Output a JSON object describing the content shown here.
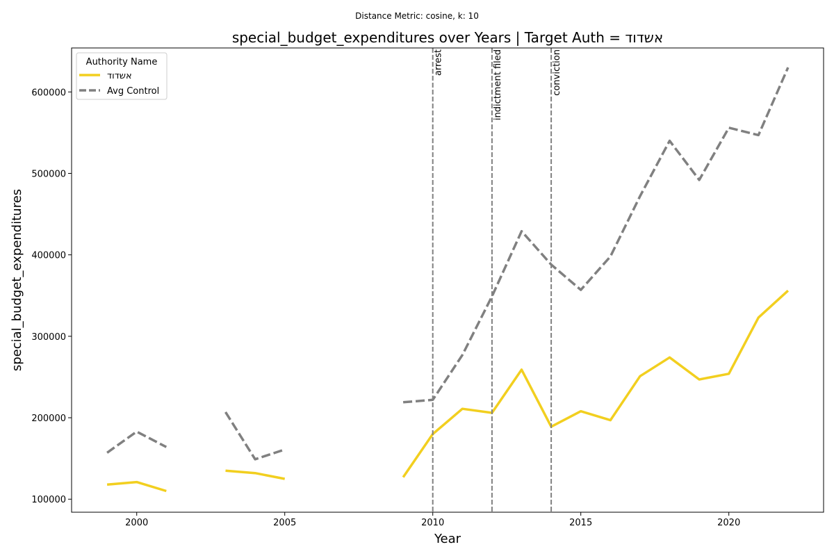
{
  "figure": {
    "suptitle": "Distance Metric: cosine, k: 10"
  },
  "chart_data": {
    "type": "line",
    "title": "special_budget_expenditures over Years | Target Auth = אשדוד",
    "xlabel": "Year",
    "ylabel": "special_budget_expenditures",
    "xlim": [
      1997.8,
      2023.2
    ],
    "ylim": [
      84000,
      654000
    ],
    "xticks": [
      2000,
      2005,
      2010,
      2015,
      2020
    ],
    "yticks": [
      100000,
      200000,
      300000,
      400000,
      500000,
      600000
    ],
    "grid": false,
    "legend": {
      "title": "Authority Name",
      "placement": "upper-left"
    },
    "series": [
      {
        "name": "אשדוד",
        "color": "#F2CF1F",
        "style": "solid",
        "x": [
          1999,
          2000,
          2001,
          2002,
          2003,
          2004,
          2005,
          2006,
          2007,
          2008,
          2009,
          2010,
          2011,
          2012,
          2013,
          2014,
          2015,
          2016,
          2017,
          2018,
          2019,
          2020,
          2021,
          2022
        ],
        "values": [
          118000,
          121000,
          110000,
          null,
          135000,
          132000,
          125000,
          null,
          null,
          null,
          127000,
          180000,
          211000,
          206000,
          259000,
          189000,
          208000,
          197000,
          251000,
          274000,
          247000,
          254000,
          323000,
          356000
        ]
      },
      {
        "name": "Avg Control",
        "color": "#808080",
        "style": "dashed",
        "x": [
          1999,
          2000,
          2001,
          2002,
          2003,
          2004,
          2005,
          2006,
          2007,
          2008,
          2009,
          2010,
          2011,
          2012,
          2013,
          2014,
          2015,
          2016,
          2017,
          2018,
          2019,
          2020,
          2021,
          2022
        ],
        "values": [
          157000,
          183000,
          164000,
          null,
          207000,
          149000,
          161000,
          null,
          null,
          null,
          219000,
          222000,
          277000,
          349000,
          429000,
          388000,
          357000,
          398000,
          472000,
          540000,
          492000,
          556000,
          547000,
          630000
        ]
      }
    ],
    "events": [
      {
        "x": 2010,
        "label": "arrest"
      },
      {
        "x": 2012,
        "label": "indictment filed"
      },
      {
        "x": 2014,
        "label": "conviction"
      }
    ]
  }
}
